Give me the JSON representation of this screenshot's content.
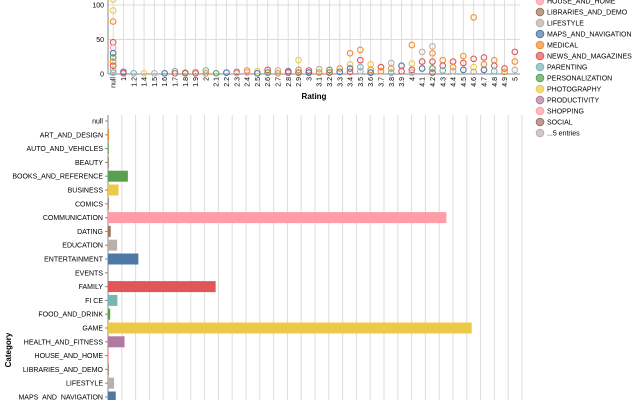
{
  "chart_data": [
    {
      "type": "scatter",
      "xlabel": "Rating",
      "ylabel": "",
      "ylim": [
        0,
        100
      ],
      "yticks": [
        "0",
        "50",
        "100"
      ],
      "x_categories": [
        "null",
        "1",
        "1.2",
        "1.4",
        "1.5",
        "1.6",
        "1.7",
        "1.8",
        "1.9",
        "2",
        "2.1",
        "2.2",
        "2.3",
        "2.4",
        "2.5",
        "2.6",
        "2.7",
        "2.8",
        "2.9",
        "3",
        "3.1",
        "3.2",
        "3.3",
        "3.4",
        "3.5",
        "3.6",
        "3.7",
        "3.8",
        "3.9",
        "4",
        "4.1",
        "4.2",
        "4.3",
        "4.4",
        "4.5",
        "4.6",
        "4.7",
        "4.8",
        "4.9",
        "5"
      ],
      "grid": true,
      "points": [
        {
          "x": "null",
          "y": 108,
          "c": "PHOTOGRAPHY"
        },
        {
          "x": "null",
          "y": 92,
          "c": "PHOTOGRAPHY"
        },
        {
          "x": "null",
          "y": 76,
          "c": "MEDICAL"
        },
        {
          "x": "null",
          "y": 46,
          "c": "NEWS_AND_MAGAZINES"
        },
        {
          "x": "null",
          "y": 38,
          "c": "HOUSE_AND_HOME"
        },
        {
          "x": "null",
          "y": 30,
          "c": "MAPS_AND_NAVIGATION"
        },
        {
          "x": "null",
          "y": 24,
          "c": "PERSONALIZATION"
        },
        {
          "x": "null",
          "y": 18,
          "c": "MEDICAL"
        },
        {
          "x": "null",
          "y": 12,
          "c": "NEWS_AND_MAGAZINES"
        },
        {
          "x": "null",
          "y": 6,
          "c": "LIFESTYLE"
        },
        {
          "x": "null",
          "y": 2,
          "c": "PARENTING"
        },
        {
          "x": "1",
          "y": 3,
          "c": "MAPS_AND_NAVIGATION"
        },
        {
          "x": "1",
          "y": 1,
          "c": "NEWS_AND_MAGAZINES"
        },
        {
          "x": "1.2",
          "y": 1,
          "c": "PARENTING"
        },
        {
          "x": "1.4",
          "y": 1,
          "c": "PHOTOGRAPHY"
        },
        {
          "x": "1.5",
          "y": 1,
          "c": "LIFESTYLE"
        },
        {
          "x": "1.6",
          "y": 1,
          "c": "MAPS_AND_NAVIGATION"
        },
        {
          "x": "1.7",
          "y": 4,
          "c": "PARENTING"
        },
        {
          "x": "1.7",
          "y": 1,
          "c": "NEWS_AND_MAGAZINES"
        },
        {
          "x": "1.8",
          "y": 2,
          "c": "MEDICAL"
        },
        {
          "x": "1.8",
          "y": 1,
          "c": "SOCIAL"
        },
        {
          "x": "1.9",
          "y": 3,
          "c": "LIFESTYLE"
        },
        {
          "x": "1.9",
          "y": 1,
          "c": "NEWS_AND_MAGAZINES"
        },
        {
          "x": "2",
          "y": 5,
          "c": "PARENTING"
        },
        {
          "x": "2",
          "y": 1,
          "c": "MEDICAL"
        },
        {
          "x": "2.1",
          "y": 1,
          "c": "PERSONALIZATION"
        },
        {
          "x": "2.2",
          "y": 2,
          "c": "MAPS_AND_NAVIGATION"
        },
        {
          "x": "2.3",
          "y": 3,
          "c": "NEWS_AND_MAGAZINES"
        },
        {
          "x": "2.3",
          "y": 1,
          "c": "LIFESTYLE"
        },
        {
          "x": "2.4",
          "y": 5,
          "c": "MEDICAL"
        },
        {
          "x": "2.4",
          "y": 2,
          "c": "SHOPPING"
        },
        {
          "x": "2.5",
          "y": 4,
          "c": "PHOTOGRAPHY"
        },
        {
          "x": "2.5",
          "y": 1,
          "c": "MAPS_AND_NAVIGATION"
        },
        {
          "x": "2.6",
          "y": 6,
          "c": "NEWS_AND_MAGAZINES"
        },
        {
          "x": "2.6",
          "y": 2,
          "c": "PERSONALIZATION"
        },
        {
          "x": "2.7",
          "y": 5,
          "c": "LIFESTYLE"
        },
        {
          "x": "2.7",
          "y": 1,
          "c": "MEDICAL"
        },
        {
          "x": "2.8",
          "y": 4,
          "c": "MAPS_AND_NAVIGATION"
        },
        {
          "x": "2.8",
          "y": 2,
          "c": "NEWS_AND_MAGAZINES"
        },
        {
          "x": "2.9",
          "y": 20,
          "c": "PHOTOGRAPHY"
        },
        {
          "x": "2.9",
          "y": 6,
          "c": "MEDICAL"
        },
        {
          "x": "2.9",
          "y": 2,
          "c": "SOCIAL"
        },
        {
          "x": "3",
          "y": 5,
          "c": "NEWS_AND_MAGAZINES"
        },
        {
          "x": "3",
          "y": 2,
          "c": "MAPS_AND_NAVIGATION"
        },
        {
          "x": "3.1",
          "y": 7,
          "c": "LIFESTYLE"
        },
        {
          "x": "3.1",
          "y": 2,
          "c": "MEDICAL"
        },
        {
          "x": "3.2",
          "y": 6,
          "c": "PERSONALIZATION"
        },
        {
          "x": "3.2",
          "y": 2,
          "c": "NEWS_AND_MAGAZINES"
        },
        {
          "x": "3.3",
          "y": 8,
          "c": "MEDICAL"
        },
        {
          "x": "3.3",
          "y": 3,
          "c": "MAPS_AND_NAVIGATION"
        },
        {
          "x": "3.4",
          "y": 30,
          "c": "MEDICAL"
        },
        {
          "x": "3.4",
          "y": 14,
          "c": "PHOTOGRAPHY"
        },
        {
          "x": "3.4",
          "y": 8,
          "c": "MAPS_AND_NAVIGATION"
        },
        {
          "x": "3.4",
          "y": 3,
          "c": "NEWS_AND_MAGAZINES"
        },
        {
          "x": "3.5",
          "y": 35,
          "c": "MEDICAL"
        },
        {
          "x": "3.5",
          "y": 20,
          "c": "NEWS_AND_MAGAZINES"
        },
        {
          "x": "3.5",
          "y": 10,
          "c": "PARENTING"
        },
        {
          "x": "3.5",
          "y": 4,
          "c": "LIFESTYLE"
        },
        {
          "x": "3.6",
          "y": 14,
          "c": "PHOTOGRAPHY"
        },
        {
          "x": "3.6",
          "y": 6,
          "c": "MEDICAL"
        },
        {
          "x": "3.6",
          "y": 2,
          "c": "MAPS_AND_NAVIGATION"
        },
        {
          "x": "3.7",
          "y": 10,
          "c": "NEWS_AND_MAGAZINES"
        },
        {
          "x": "3.7",
          "y": 4,
          "c": "MEDICAL"
        },
        {
          "x": "3.8",
          "y": 16,
          "c": "LIFESTYLE"
        },
        {
          "x": "3.8",
          "y": 8,
          "c": "MEDICAL"
        },
        {
          "x": "3.8",
          "y": 2,
          "c": "PARENTING"
        },
        {
          "x": "3.9",
          "y": 12,
          "c": "MAPS_AND_NAVIGATION"
        },
        {
          "x": "3.9",
          "y": 4,
          "c": "NEWS_AND_MAGAZINES"
        },
        {
          "x": "4",
          "y": 42,
          "c": "MEDICAL"
        },
        {
          "x": "4",
          "y": 15,
          "c": "PHOTOGRAPHY"
        },
        {
          "x": "4",
          "y": 6,
          "c": "NEWS_AND_MAGAZINES"
        },
        {
          "x": "4",
          "y": 2,
          "c": "LIFESTYLE"
        },
        {
          "x": "4.1",
          "y": 32,
          "c": "LIFESTYLE"
        },
        {
          "x": "4.1",
          "y": 18,
          "c": "NEWS_AND_MAGAZINES"
        },
        {
          "x": "4.1",
          "y": 8,
          "c": "MAPS_AND_NAVIGATION"
        },
        {
          "x": "4.2",
          "y": 40,
          "c": "LIFESTYLE"
        },
        {
          "x": "4.2",
          "y": 30,
          "c": "MEDICAL"
        },
        {
          "x": "4.2",
          "y": 18,
          "c": "NEWS_AND_MAGAZINES"
        },
        {
          "x": "4.2",
          "y": 8,
          "c": "PERSONALIZATION"
        },
        {
          "x": "4.2",
          "y": 2,
          "c": "SOCIAL"
        },
        {
          "x": "4.3",
          "y": 20,
          "c": "MEDICAL"
        },
        {
          "x": "4.3",
          "y": 12,
          "c": "NEWS_AND_MAGAZINES"
        },
        {
          "x": "4.3",
          "y": 5,
          "c": "PARENTING"
        },
        {
          "x": "4.4",
          "y": 18,
          "c": "NEWS_AND_MAGAZINES"
        },
        {
          "x": "4.4",
          "y": 10,
          "c": "MEDICAL"
        },
        {
          "x": "4.4",
          "y": 4,
          "c": "LIFESTYLE"
        },
        {
          "x": "4.5",
          "y": 26,
          "c": "MEDICAL"
        },
        {
          "x": "4.5",
          "y": 16,
          "c": "NEWS_AND_MAGAZINES"
        },
        {
          "x": "4.5",
          "y": 6,
          "c": "MAPS_AND_NAVIGATION"
        },
        {
          "x": "4.6",
          "y": 82,
          "c": "MEDICAL"
        },
        {
          "x": "4.6",
          "y": 22,
          "c": "NEWS_AND_MAGAZINES"
        },
        {
          "x": "4.6",
          "y": 10,
          "c": "PHOTOGRAPHY"
        },
        {
          "x": "4.6",
          "y": 3,
          "c": "LIFESTYLE"
        },
        {
          "x": "4.7",
          "y": 24,
          "c": "NEWS_AND_MAGAZINES"
        },
        {
          "x": "4.7",
          "y": 14,
          "c": "MEDICAL"
        },
        {
          "x": "4.7",
          "y": 6,
          "c": "MAPS_AND_NAVIGATION"
        },
        {
          "x": "4.8",
          "y": 20,
          "c": "MEDICAL"
        },
        {
          "x": "4.8",
          "y": 12,
          "c": "NEWS_AND_MAGAZINES"
        },
        {
          "x": "4.8",
          "y": 4,
          "c": "PARENTING"
        },
        {
          "x": "4.9",
          "y": 8,
          "c": "NEWS_AND_MAGAZINES"
        },
        {
          "x": "4.9",
          "y": 3,
          "c": "MEDICAL"
        },
        {
          "x": "5",
          "y": 32,
          "c": "NEWS_AND_MAGAZINES"
        },
        {
          "x": "5",
          "y": 18,
          "c": "MEDICAL"
        },
        {
          "x": "5",
          "y": 6,
          "c": "LIFESTYLE"
        }
      ]
    },
    {
      "type": "bar",
      "orientation": "horizontal",
      "ylabel": "Category",
      "xlabel": "",
      "xlim": [
        0,
        1500
      ],
      "grid": true,
      "categories": [
        "null",
        "ART_AND_DESIGN",
        "AUTO_AND_VEHICLES",
        "BEAUTY",
        "BOOKS_AND_REFERENCE",
        "BUSINESS",
        "COMICS",
        "COMMUNICATION",
        "DATING",
        "EDUCATION",
        "ENTERTAINMENT",
        "EVENTS",
        "FAMILY",
        "FI  CE",
        "FOOD_AND_DRINK",
        "GAME",
        "HEALTH_AND_FITNESS",
        "HOUSE_AND_HOME",
        "LIBRARIES_AND_DEMO",
        "LIFESTYLE",
        "MAPS_AND_NAVIGATION"
      ],
      "values": [
        0,
        4,
        2,
        2,
        72,
        38,
        3,
        1226,
        10,
        33,
        110,
        1,
        390,
        34,
        8,
        1318,
        60,
        2,
        2,
        22,
        28
      ],
      "colors": [
        "#bab0ac",
        "#f28e2b",
        "#59a14f",
        "#9c755f",
        "#59a14f",
        "#edc948",
        "#9c755f",
        "#ff9da7",
        "#9c755f",
        "#bab0ac",
        "#4e79a7",
        "#bab0ac",
        "#e15759",
        "#76b7b2",
        "#59a14f",
        "#edc948",
        "#b07aa1",
        "#ff9da7",
        "#9c755f",
        "#bab0ac",
        "#4e79a7"
      ]
    }
  ],
  "legend": {
    "entries": [
      {
        "label": "HOUSE_AND_HOME",
        "color": "#ff9da7"
      },
      {
        "label": "LIBRARIES_AND_DEMO",
        "color": "#9c755f"
      },
      {
        "label": "LIFESTYLE",
        "color": "#bab0ac"
      },
      {
        "label": "MAPS_AND_NAVIGATION",
        "color": "#4e79a7"
      },
      {
        "label": "MEDICAL",
        "color": "#f28e2b"
      },
      {
        "label": "NEWS_AND_MAGAZINES",
        "color": "#e15759"
      },
      {
        "label": "PARENTING",
        "color": "#76b7b2"
      },
      {
        "label": "PERSONALIZATION",
        "color": "#59a14f"
      },
      {
        "label": "PHOTOGRAPHY",
        "color": "#edc948"
      },
      {
        "label": "PRODUCTIVITY",
        "color": "#b07aa1"
      },
      {
        "label": "SHOPPING",
        "color": "#ff9da7"
      },
      {
        "label": "SOCIAL",
        "color": "#9c755f"
      },
      {
        "label": "...5 entries",
        "color": "#bab0ac"
      }
    ]
  }
}
